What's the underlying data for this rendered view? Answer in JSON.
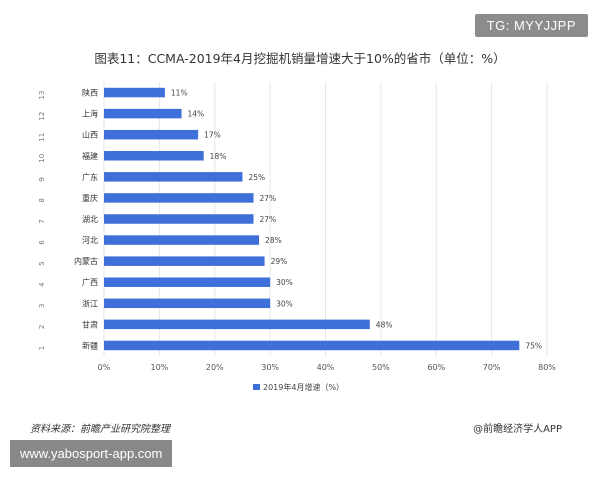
{
  "badge": "TG: MYYJJPP",
  "footer": {
    "source": "资料来源：前瞻产业研究院整理",
    "credit": "@前瞻经济学人APP",
    "url": "www.yabosport-app.com"
  },
  "colors": {
    "bar": "#3f6fd8",
    "grid": "#e6e6e6",
    "text": "#333333"
  },
  "chart_data": {
    "type": "bar",
    "orientation": "horizontal",
    "title": "图表11：CCMA-2019年4月挖掘机销量增速大于10%的省市（单位：%）",
    "ranks": [
      "1",
      "2",
      "3",
      "4",
      "5",
      "6",
      "7",
      "8",
      "9",
      "10",
      "11",
      "12",
      "13"
    ],
    "categories": [
      "新疆",
      "甘肃",
      "浙江",
      "广西",
      "内蒙古",
      "河北",
      "湖北",
      "重庆",
      "广东",
      "福建",
      "山西",
      "上海",
      "陕西"
    ],
    "series": [
      {
        "name": "2019年4月增速（%）",
        "values": [
          75,
          48,
          30,
          30,
          29,
          28,
          27,
          27,
          25,
          18,
          17,
          14,
          11
        ]
      }
    ],
    "data_labels": [
      "75%",
      "48%",
      "30%",
      "30%",
      "29%",
      "28%",
      "27%",
      "27%",
      "25%",
      "18%",
      "17%",
      "14%",
      "11%"
    ],
    "xlim": [
      0,
      80
    ],
    "xticks": [
      "0%",
      "10%",
      "20%",
      "30%",
      "40%",
      "50%",
      "60%",
      "70%",
      "80%"
    ],
    "grid": true,
    "legend": "bottom"
  }
}
